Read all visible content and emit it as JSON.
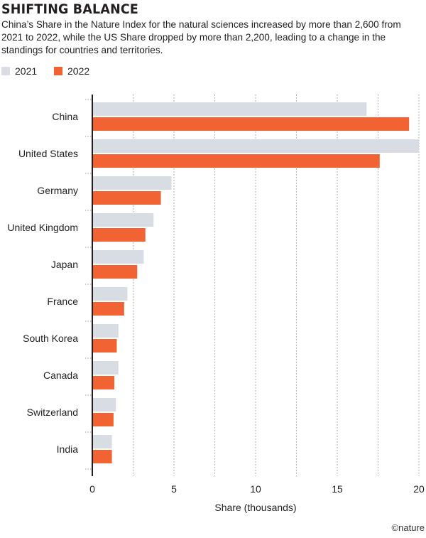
{
  "header": {
    "title": "SHIFTING BALANCE",
    "subtitle": "China’s Share in the Nature Index for the natural sciences increased by more than 2,600 from 2021 to 2022, while the US Share dropped by more than 2,200, leading to a change in the standings for countries and territories."
  },
  "credit": "©nature",
  "colors": {
    "2021": "#d8dde3",
    "2022": "#f26334"
  },
  "chart_data": {
    "type": "bar",
    "orientation": "horizontal",
    "categories": [
      "China",
      "United States",
      "Germany",
      "United Kingdom",
      "Japan",
      "France",
      "South Korea",
      "Canada",
      "Switzerland",
      "India"
    ],
    "series": [
      {
        "name": "2021",
        "values": [
          16.8,
          20.0,
          4.85,
          3.75,
          3.15,
          2.15,
          1.6,
          1.6,
          1.45,
          1.2
        ]
      },
      {
        "name": "2022",
        "values": [
          19.4,
          17.6,
          4.2,
          3.25,
          2.75,
          1.95,
          1.5,
          1.35,
          1.3,
          1.2
        ]
      }
    ],
    "xlabel": "Share (thousands)",
    "xlim": [
      0,
      20
    ],
    "xticks": [
      0,
      5,
      10,
      15,
      20
    ],
    "grid": true,
    "legend": "top-left"
  }
}
